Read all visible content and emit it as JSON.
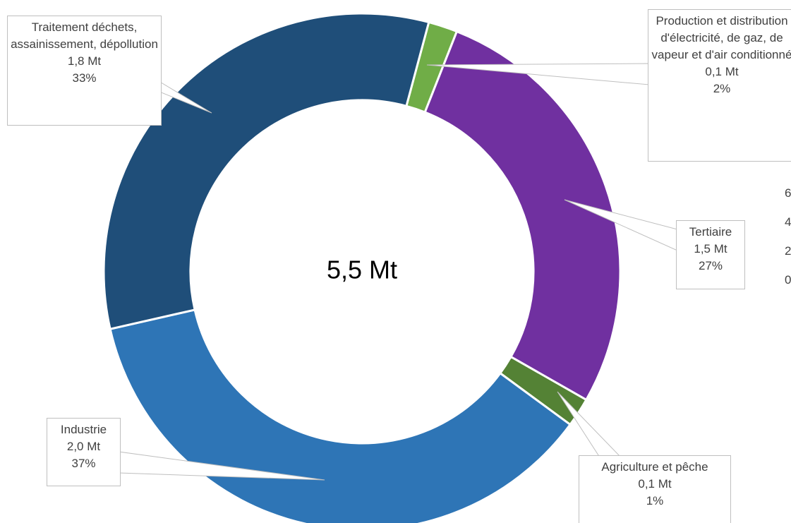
{
  "chart_data": {
    "type": "donut",
    "center_label": "5,5 Mt",
    "start_angle": 15,
    "categories": [
      "Production et distribution d'électricité, de gaz, de vapeur et d'air conditionné",
      "Tertiaire",
      "Agriculture et pêche",
      "Industrie",
      "Traitement déchets, assainissement, dépollution"
    ],
    "values": [
      0.1,
      1.5,
      0.1,
      2.0,
      1.8
    ],
    "value_labels": [
      "0,1 Mt",
      "1,5 Mt",
      "0,1 Mt",
      "2,0 Mt",
      "1,8 Mt"
    ],
    "percent_labels": [
      "2%",
      "27%",
      "1%",
      "37%",
      "33%"
    ],
    "colors": [
      "#70ad47",
      "#7030a0",
      "#548235",
      "#2e75b6",
      "#1f4e79"
    ]
  },
  "background_ticks": [
    "6",
    "4",
    "2",
    "0"
  ]
}
